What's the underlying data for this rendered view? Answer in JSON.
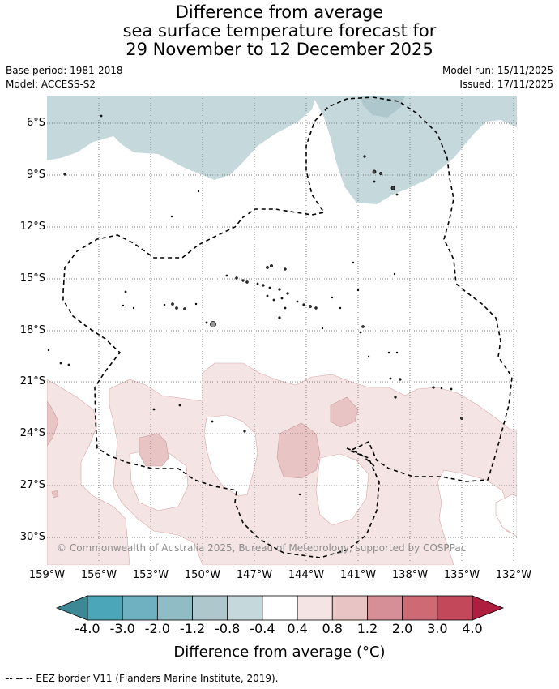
{
  "title": {
    "line1": "Difference from average",
    "line2": "sea surface temperature forecast for",
    "line3": "29 November to 12 December 2025"
  },
  "meta": {
    "base_period": "Base period: 1981-2018",
    "model": "Model: ACCESS-S2",
    "model_run": "Model run: 15/11/2025",
    "issued": "Issued: 17/11/2025"
  },
  "map": {
    "lat_labels": [
      "6°S",
      "9°S",
      "12°S",
      "15°S",
      "18°S",
      "21°S",
      "24°S",
      "27°S",
      "30°S"
    ],
    "lon_labels": [
      "159°W",
      "156°W",
      "153°W",
      "150°W",
      "147°W",
      "144°W",
      "141°W",
      "138°W",
      "135°W",
      "132°W"
    ],
    "copyright": "© Commonwealth of Australia 2025, Bureau of Meteorology, supported by COSPPac"
  },
  "colorbar": {
    "ticks": [
      "-4.0",
      "-3.0",
      "-2.0",
      "-1.2",
      "-0.8",
      "-0.4",
      "0.4",
      "0.8",
      "1.2",
      "2.0",
      "3.0",
      "4.0"
    ],
    "colors": [
      "#3e8795",
      "#4aa6b8",
      "#6fb1c0",
      "#8fbcc5",
      "#adc7cd",
      "#c5d8dc",
      "#ffffff",
      "#f5e4e4",
      "#e8c4c4",
      "#d68f96",
      "#cd6a74",
      "#c2485a",
      "#b01e3f"
    ],
    "label": "Difference from average (°C)"
  },
  "footer": "-- -- -- EEZ border V11 (Flanders Marine Institute, 2019)."
}
